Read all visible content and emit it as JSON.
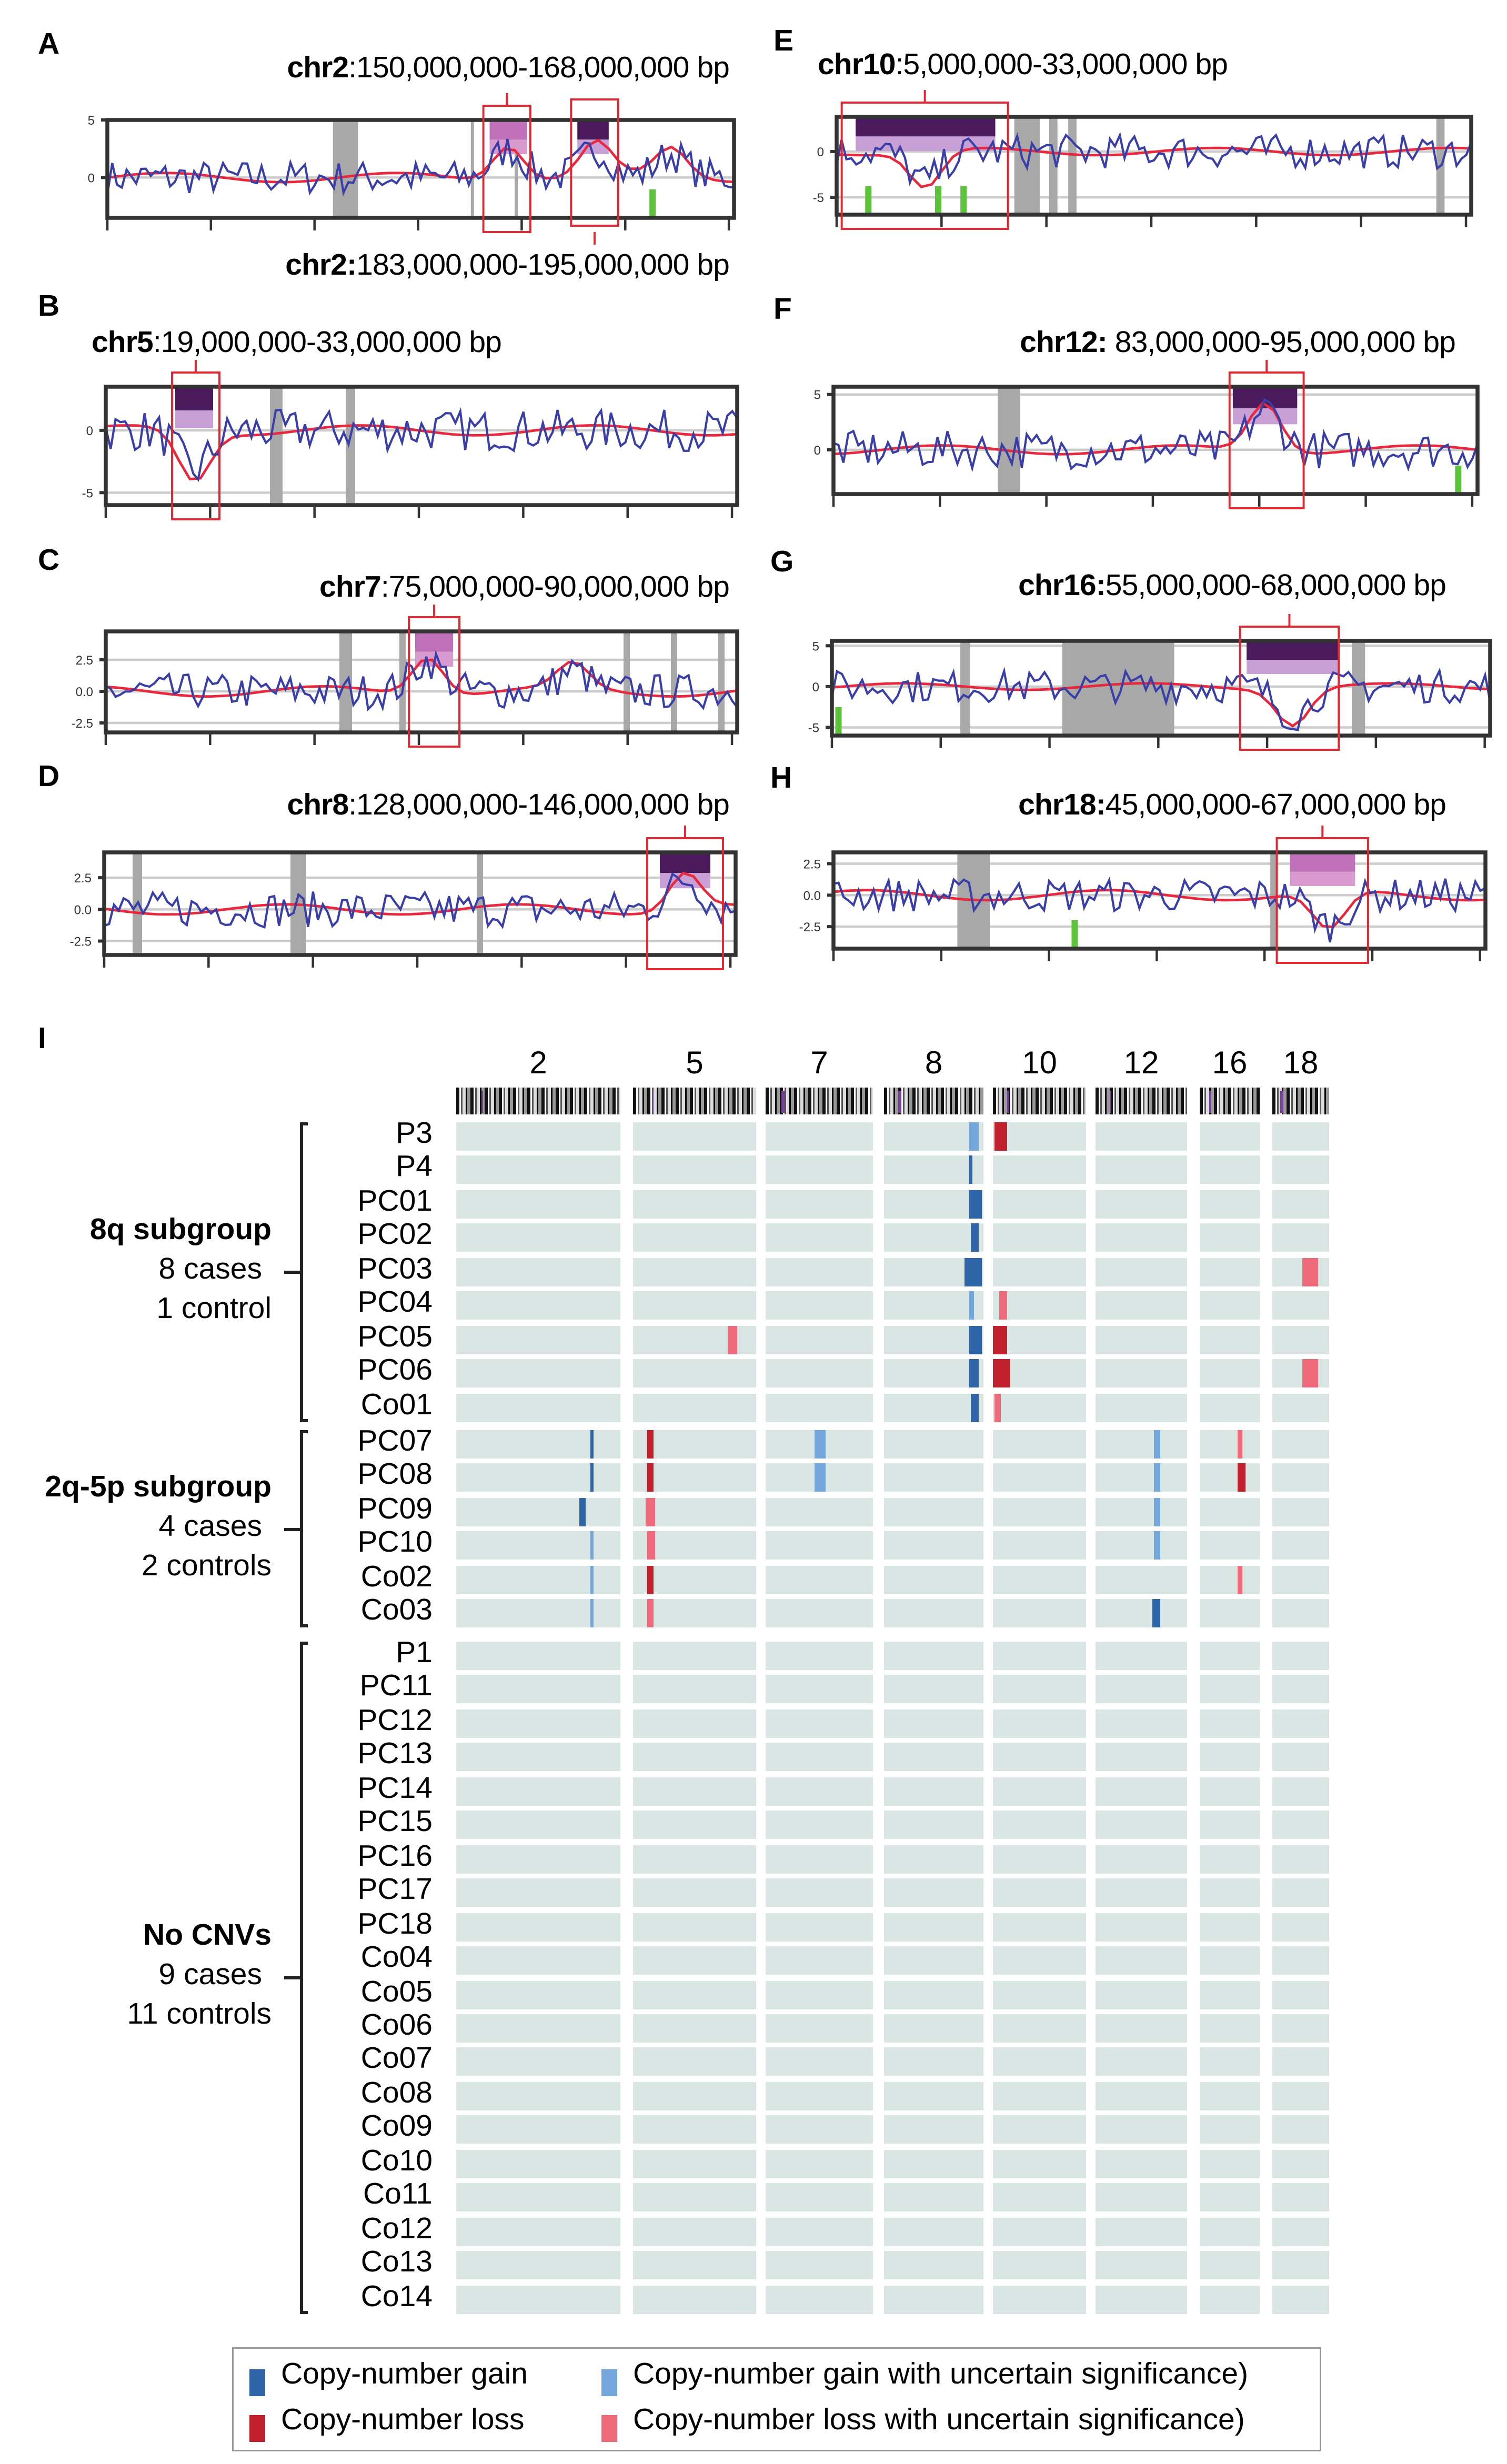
{
  "panels": [
    {
      "letter": "A",
      "title_bold": "chr2",
      "title_rest": ":150,000,000-168,000,000 bp",
      "title2_bold": "chr2:",
      "title2_rest": "183,000,000-195,000,000 bp",
      "yticks": [
        "5",
        "0"
      ],
      "ytick_values": [
        5,
        0
      ],
      "ylim": [
        -3.5,
        5
      ],
      "grey_regions": [
        [
          0.36,
          0.4
        ],
        [
          0.58,
          0.585
        ],
        [
          0.65,
          0.655
        ]
      ],
      "green_marks": [
        0.87
      ],
      "segments": [
        {
          "range": [
            0.61,
            0.67
          ],
          "shade": "light"
        },
        {
          "range": [
            0.75,
            0.8
          ],
          "shade": "dark"
        }
      ],
      "highlight_boxes": [
        [
          0.6,
          0.675
        ],
        [
          0.74,
          0.815
        ]
      ],
      "signal_peaks": [
        [
          0.64,
          3
        ],
        [
          0.78,
          3
        ],
        [
          0.9,
          2.5
        ]
      ]
    },
    {
      "letter": "B",
      "title_bold": "chr5",
      "title_rest": ":19,000,000-33,000,000 bp",
      "yticks": [
        "0",
        "-5"
      ],
      "ytick_values": [
        0,
        -5
      ],
      "ylim": [
        -6,
        3.5
      ],
      "grey_regions": [
        [
          0.26,
          0.28
        ],
        [
          0.38,
          0.395
        ]
      ],
      "green_marks": [],
      "segments": [
        {
          "range": [
            0.11,
            0.17
          ],
          "shade": "dark"
        }
      ],
      "highlight_boxes": [
        [
          0.105,
          0.18
        ]
      ],
      "signal_peaks": [
        [
          0.14,
          -4
        ]
      ]
    },
    {
      "letter": "C",
      "title_bold": "chr7",
      "title_rest": ":75,000,000-90,000,000 bp",
      "yticks": [
        "2.5",
        "0.0",
        "-2.5"
      ],
      "ytick_values": [
        2.5,
        0,
        -2.5
      ],
      "ylim": [
        -3.25,
        4.75
      ],
      "grey_regions": [
        [
          0.37,
          0.39
        ],
        [
          0.465,
          0.475
        ],
        [
          0.82,
          0.83
        ],
        [
          0.895,
          0.905
        ],
        [
          0.97,
          0.98
        ]
      ],
      "green_marks": [],
      "segments": [
        {
          "range": [
            0.49,
            0.55
          ],
          "shade": "light"
        }
      ],
      "highlight_boxes": [
        [
          0.48,
          0.56
        ]
      ],
      "signal_peaks": [
        [
          0.51,
          3
        ],
        [
          0.74,
          2
        ]
      ]
    },
    {
      "letter": "D",
      "title_bold": "chr8",
      "title_rest": ":128,000,000-146,000,000 bp",
      "yticks": [
        "2.5",
        "0.0",
        "-2.5"
      ],
      "ytick_values": [
        2.5,
        0,
        -2.5
      ],
      "ylim": [
        -3.6,
        4.5
      ],
      "grey_regions": [
        [
          0.045,
          0.06
        ],
        [
          0.295,
          0.32
        ],
        [
          0.59,
          0.6
        ]
      ],
      "green_marks": [],
      "segments": [
        {
          "range": [
            0.88,
            0.96
          ],
          "shade": "dark"
        }
      ],
      "highlight_boxes": [
        [
          0.86,
          0.98
        ]
      ],
      "signal_peaks": [
        [
          0.92,
          3
        ]
      ]
    },
    {
      "letter": "E",
      "title_bold": "chr10",
      "title_rest": ":5,000,000-33,000,000 bp",
      "yticks": [
        "0",
        "-5"
      ],
      "ytick_values": [
        0,
        -5
      ],
      "ylim": [
        -6.9,
        3.8
      ],
      "grey_regions": [
        [
          0.28,
          0.32
        ],
        [
          0.335,
          0.348
        ],
        [
          0.365,
          0.378
        ],
        [
          0.945,
          0.958
        ]
      ],
      "green_marks": [
        0.05,
        0.16,
        0.2
      ],
      "segments": [
        {
          "range": [
            0.03,
            0.25
          ],
          "shade": "dark"
        }
      ],
      "highlight_boxes": [
        [
          0.008,
          0.27
        ]
      ],
      "signal_peaks": [
        [
          0.14,
          -4
        ]
      ]
    },
    {
      "letter": "F",
      "title_bold": "chr12:",
      "title_rest": " 83,000,000-95,000,000 bp",
      "yticks": [
        "5",
        "0"
      ],
      "ytick_values": [
        5,
        0
      ],
      "ylim": [
        -4,
        5.7
      ],
      "grey_regions": [
        [
          0.255,
          0.29
        ]
      ],
      "green_marks": [
        0.97
      ],
      "segments": [
        {
          "range": [
            0.62,
            0.72
          ],
          "shade": "dark"
        }
      ],
      "highlight_boxes": [
        [
          0.615,
          0.73
        ]
      ],
      "signal_peaks": [
        [
          0.67,
          4.5
        ]
      ]
    },
    {
      "letter": "G",
      "title_bold": "chr16:",
      "title_rest": "55,000,000-68,000,000 bp",
      "yticks": [
        "5",
        "0",
        "-5"
      ],
      "ytick_values": [
        5,
        0,
        -5
      ],
      "ylim": [
        -6,
        5.6
      ],
      "grey_regions": [
        [
          0.195,
          0.21
        ],
        [
          0.35,
          0.52
        ],
        [
          0.79,
          0.81
        ]
      ],
      "green_marks": [
        0.01
      ],
      "segments": [
        {
          "range": [
            0.63,
            0.77
          ],
          "shade": "dark"
        }
      ],
      "highlight_boxes": [
        [
          0.62,
          0.77
        ]
      ],
      "signal_peaks": [
        [
          0.7,
          -4.5
        ]
      ]
    },
    {
      "letter": "H",
      "title_bold": "chr18:",
      "title_rest": "45,000,000-67,000,000 bp",
      "yticks": [
        "2.5",
        "0.0",
        "-2.5"
      ],
      "ytick_values": [
        2.5,
        0,
        -2.5
      ],
      "ylim": [
        -4.25,
        3.4
      ],
      "grey_regions": [
        [
          0.19,
          0.24
        ],
        [
          0.67,
          0.68
        ]
      ],
      "green_marks": [
        0.37
      ],
      "segments": [
        {
          "range": [
            0.7,
            0.8
          ],
          "shade": "light"
        }
      ],
      "highlight_boxes": [
        [
          0.68,
          0.82
        ]
      ],
      "signal_peaks": [
        [
          0.76,
          -3
        ]
      ]
    }
  ],
  "heatmap": {
    "letter": "I",
    "chromosomes": [
      "2",
      "5",
      "7",
      "8",
      "10",
      "12",
      "16",
      "18"
    ],
    "groups": [
      {
        "name": "8q subgroup",
        "cases": "8 cases",
        "controls": "1 control",
        "samples": [
          "P3",
          "P4",
          "PC01",
          "PC02",
          "PC03",
          "PC04",
          "PC05",
          "PC06",
          "Co01"
        ]
      },
      {
        "name": "2q-5p subgroup",
        "cases": "4 cases",
        "controls": "2 controls",
        "samples": [
          "PC07",
          "PC08",
          "PC09",
          "PC10",
          "Co02",
          "Co03"
        ]
      },
      {
        "name": "No CNVs",
        "cases": "9 cases",
        "controls": "11 controls",
        "samples": [
          "P1",
          "PC11",
          "PC12",
          "PC13",
          "PC14",
          "PC15",
          "PC16",
          "PC17",
          "PC18",
          "Co04",
          "Co05",
          "Co06",
          "Co07",
          "Co08",
          "Co09",
          "Co10",
          "Co11",
          "Co12",
          "Co13",
          "Co14"
        ]
      }
    ],
    "events": [
      {
        "sample": "P3",
        "chr": "8",
        "range": [
          0.86,
          0.95
        ],
        "type": "gain_uncertain"
      },
      {
        "sample": "P3",
        "chr": "10",
        "range": [
          0.01,
          0.15
        ],
        "type": "loss"
      },
      {
        "sample": "P4",
        "chr": "8",
        "range": [
          0.86,
          0.89
        ],
        "type": "gain"
      },
      {
        "sample": "PC01",
        "chr": "8",
        "range": [
          0.86,
          0.98
        ],
        "type": "gain"
      },
      {
        "sample": "PC02",
        "chr": "8",
        "range": [
          0.87,
          0.96
        ],
        "type": "gain"
      },
      {
        "sample": "PC03",
        "chr": "8",
        "range": [
          0.81,
          0.98
        ],
        "type": "gain"
      },
      {
        "sample": "PC03",
        "chr": "18",
        "range": [
          0.52,
          0.81
        ],
        "type": "loss_uncertain"
      },
      {
        "sample": "PC04",
        "chr": "8",
        "range": [
          0.86,
          0.91
        ],
        "type": "gain_uncertain"
      },
      {
        "sample": "PC04",
        "chr": "10",
        "range": [
          0.07,
          0.16
        ],
        "type": "loss_uncertain"
      },
      {
        "sample": "PC05",
        "chr": "5",
        "range": [
          0.77,
          0.84
        ],
        "type": "loss_uncertain"
      },
      {
        "sample": "PC05",
        "chr": "8",
        "range": [
          0.86,
          0.98
        ],
        "type": "gain"
      },
      {
        "sample": "PC05",
        "chr": "10",
        "range": [
          0.0,
          0.16
        ],
        "type": "loss"
      },
      {
        "sample": "PC06",
        "chr": "8",
        "range": [
          0.86,
          0.95
        ],
        "type": "gain"
      },
      {
        "sample": "PC06",
        "chr": "10",
        "range": [
          0.0,
          0.18
        ],
        "type": "loss"
      },
      {
        "sample": "PC06",
        "chr": "18",
        "range": [
          0.52,
          0.81
        ],
        "type": "loss_uncertain"
      },
      {
        "sample": "Co01",
        "chr": "8",
        "range": [
          0.87,
          0.95
        ],
        "type": "gain"
      },
      {
        "sample": "Co01",
        "chr": "10",
        "range": [
          0.02,
          0.09
        ],
        "type": "loss_uncertain"
      },
      {
        "sample": "PC07",
        "chr": "2",
        "range": [
          0.82,
          0.84
        ],
        "type": "gain"
      },
      {
        "sample": "PC07",
        "chr": "5",
        "range": [
          0.11,
          0.17
        ],
        "type": "loss"
      },
      {
        "sample": "PC07",
        "chr": "7",
        "range": [
          0.45,
          0.56
        ],
        "type": "gain_uncertain"
      },
      {
        "sample": "PC07",
        "chr": "12",
        "range": [
          0.63,
          0.71
        ],
        "type": "gain_uncertain"
      },
      {
        "sample": "PC07",
        "chr": "16",
        "range": [
          0.63,
          0.71
        ],
        "type": "loss_uncertain"
      },
      {
        "sample": "PC08",
        "chr": "2",
        "range": [
          0.82,
          0.84
        ],
        "type": "gain"
      },
      {
        "sample": "PC08",
        "chr": "5",
        "range": [
          0.12,
          0.17
        ],
        "type": "loss"
      },
      {
        "sample": "PC08",
        "chr": "7",
        "range": [
          0.45,
          0.56
        ],
        "type": "gain_uncertain"
      },
      {
        "sample": "PC08",
        "chr": "12",
        "range": [
          0.63,
          0.71
        ],
        "type": "gain_uncertain"
      },
      {
        "sample": "PC08",
        "chr": "16",
        "range": [
          0.63,
          0.76
        ],
        "type": "loss"
      },
      {
        "sample": "PC09",
        "chr": "2",
        "range": [
          0.75,
          0.79
        ],
        "type": "gain"
      },
      {
        "sample": "PC09",
        "chr": "5",
        "range": [
          0.1,
          0.18
        ],
        "type": "loss_uncertain"
      },
      {
        "sample": "PC09",
        "chr": "12",
        "range": [
          0.63,
          0.71
        ],
        "type": "gain_uncertain"
      },
      {
        "sample": "PC10",
        "chr": "2",
        "range": [
          0.82,
          0.84
        ],
        "type": "gain_uncertain"
      },
      {
        "sample": "PC10",
        "chr": "5",
        "range": [
          0.12,
          0.18
        ],
        "type": "loss_uncertain"
      },
      {
        "sample": "PC10",
        "chr": "12",
        "range": [
          0.63,
          0.71
        ],
        "type": "gain_uncertain"
      },
      {
        "sample": "Co02",
        "chr": "2",
        "range": [
          0.82,
          0.84
        ],
        "type": "gain_uncertain"
      },
      {
        "sample": "Co02",
        "chr": "5",
        "range": [
          0.11,
          0.17
        ],
        "type": "loss"
      },
      {
        "sample": "Co02",
        "chr": "16",
        "range": [
          0.62,
          0.71
        ],
        "type": "loss_uncertain"
      },
      {
        "sample": "Co03",
        "chr": "2",
        "range": [
          0.82,
          0.84
        ],
        "type": "gain_uncertain"
      },
      {
        "sample": "Co03",
        "chr": "5",
        "range": [
          0.11,
          0.17
        ],
        "type": "loss_uncertain"
      },
      {
        "sample": "Co03",
        "chr": "12",
        "range": [
          0.62,
          0.71
        ],
        "type": "gain"
      }
    ],
    "legend": [
      {
        "type": "gain",
        "label": "Copy-number gain"
      },
      {
        "type": "loss",
        "label": "Copy-number loss"
      },
      {
        "type": "gain_uncertain",
        "label": "Copy-number gain with uncertain significance)"
      },
      {
        "type": "loss_uncertain",
        "label": "Copy-number loss with uncertain significance)"
      }
    ],
    "colors": {
      "gain": "#2e64a8",
      "gain_uncertain": "#74a7db",
      "loss": "#c0212d",
      "loss_uncertain": "#ef6b7b",
      "background": "#dae6e3"
    }
  }
}
